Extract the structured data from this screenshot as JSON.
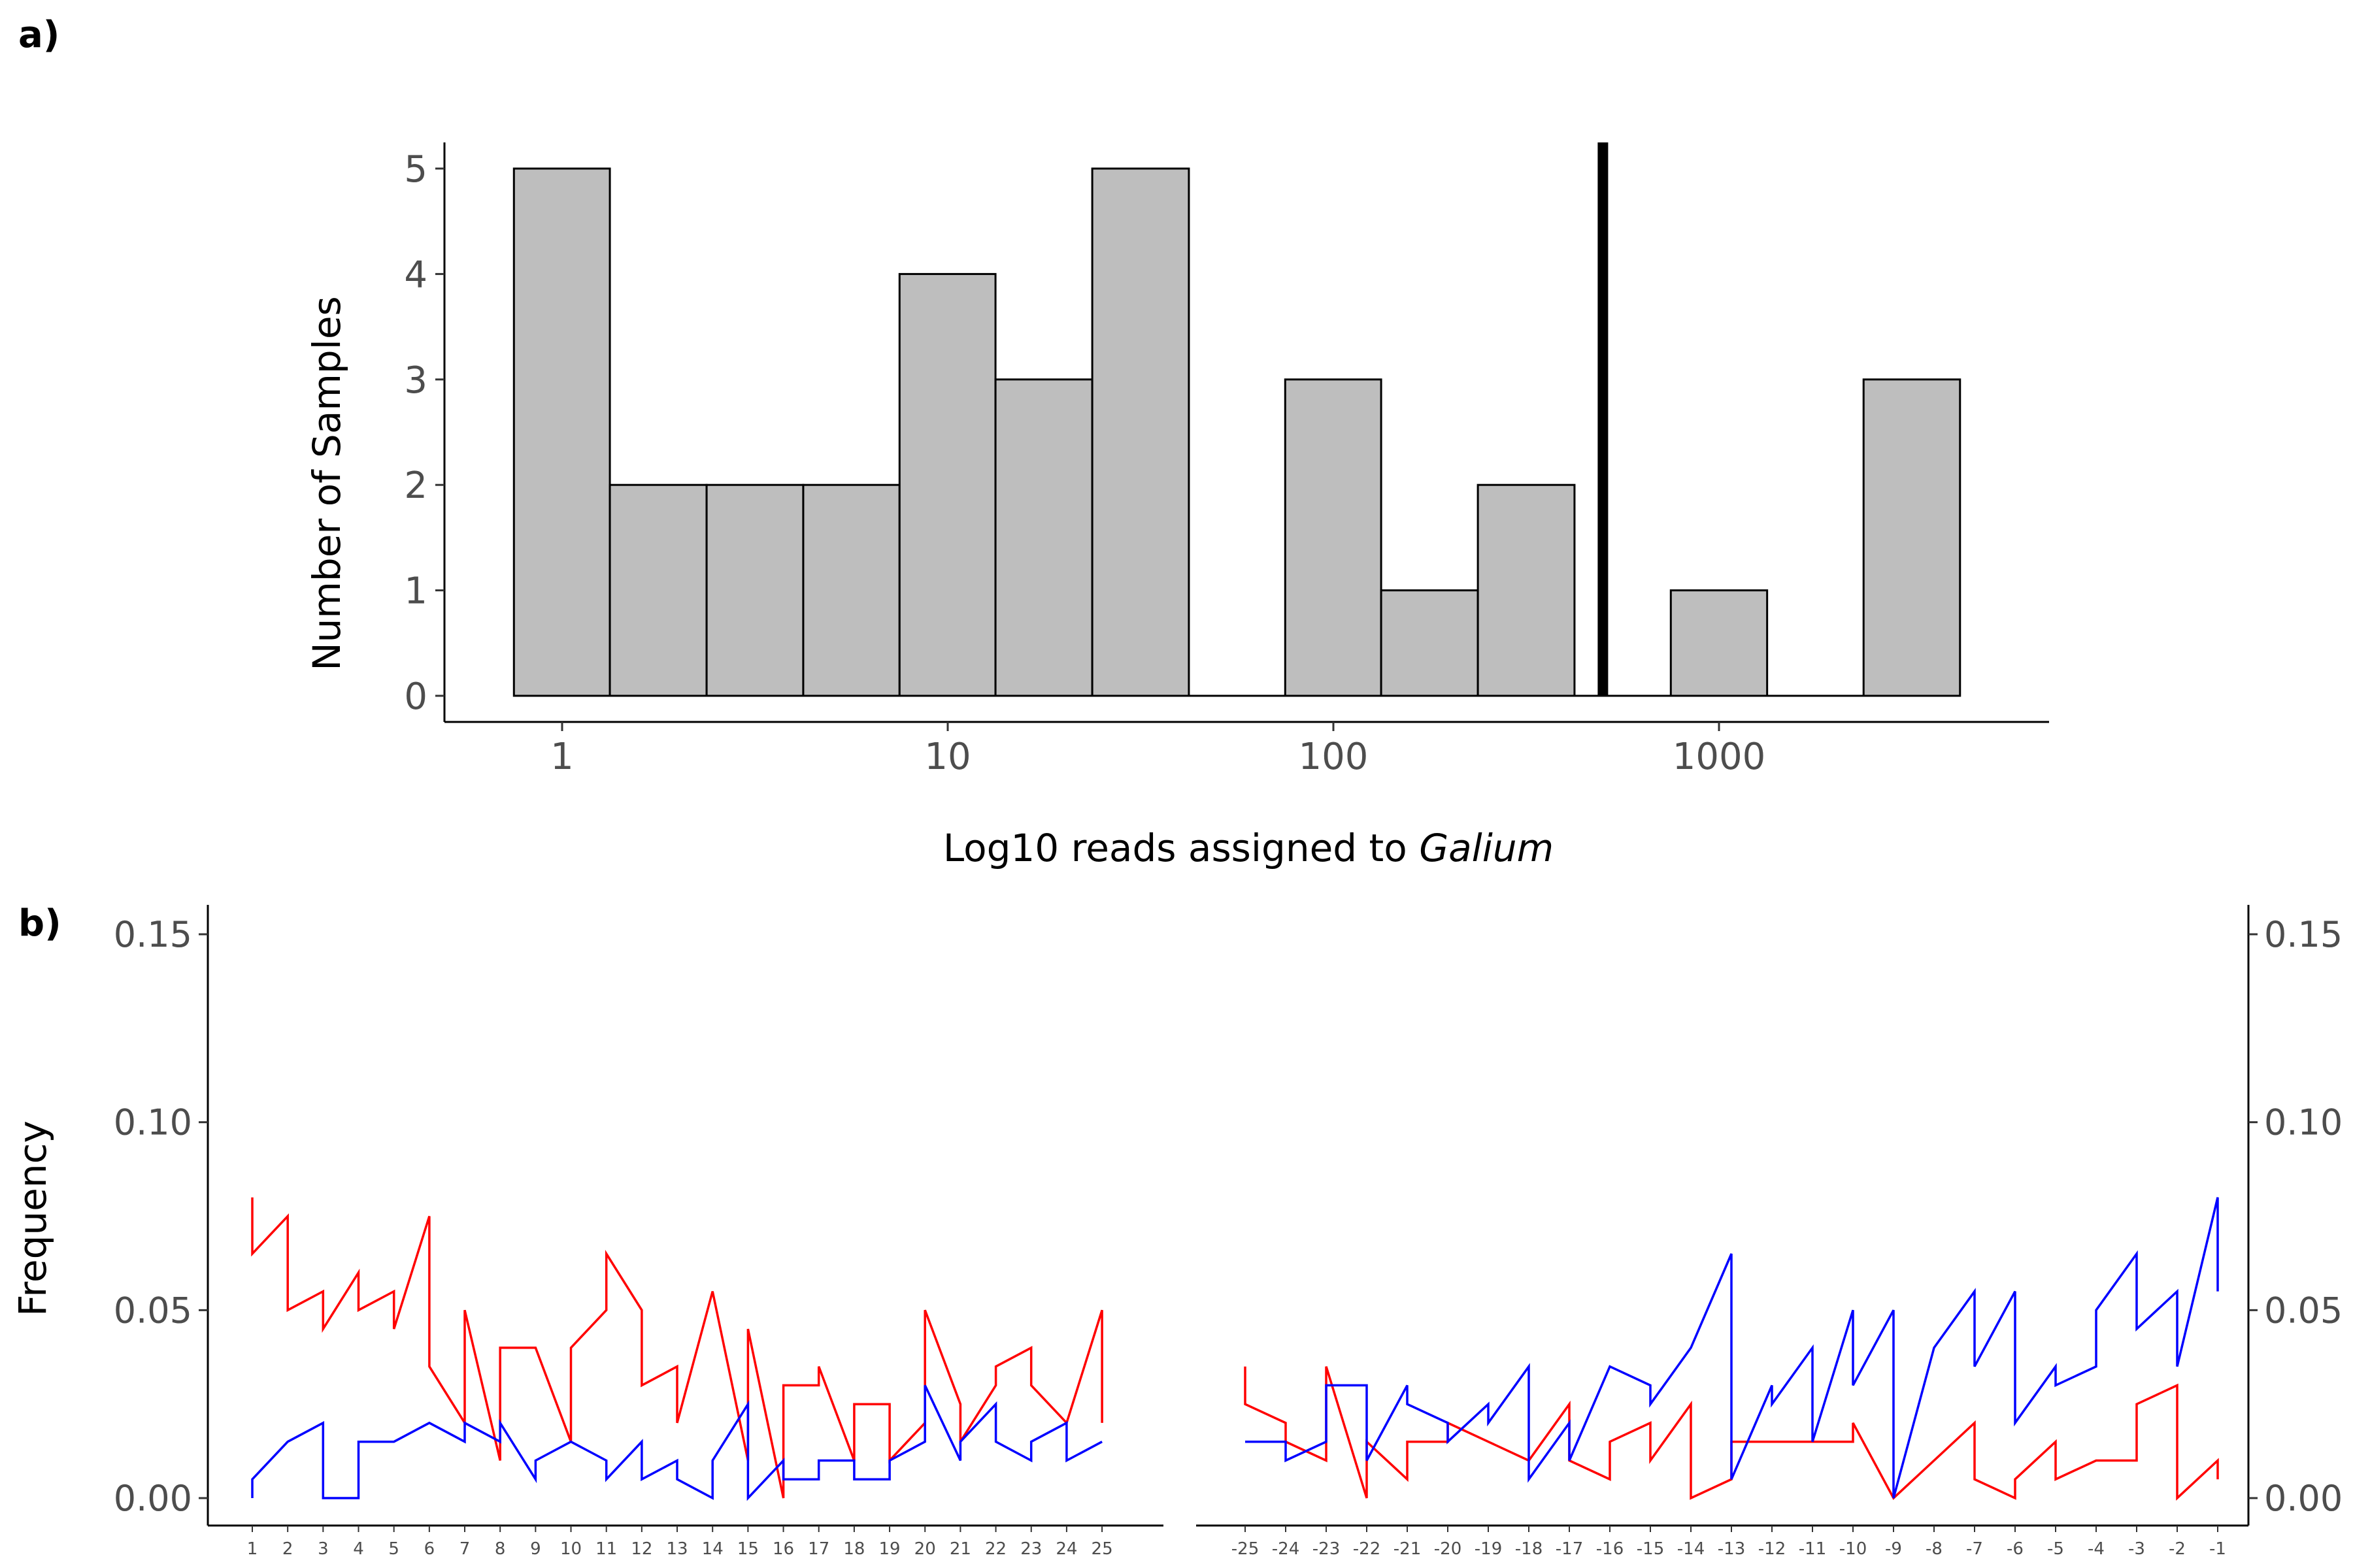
{
  "panels": {
    "a_label": "a)",
    "b_label": "b)"
  },
  "chart_data": [
    {
      "type": "bar",
      "subtype": "histogram",
      "xscale": "log10",
      "xlabel_prefix": "Log10 reads assigned to ",
      "xlabel_italic": "Galium",
      "ylabel": "Number of Samples",
      "xticks": [
        1,
        10,
        100,
        1000
      ],
      "xtick_labels": [
        "1",
        "10",
        "100",
        "1000"
      ],
      "yticks": [
        0,
        1,
        2,
        3,
        4,
        5
      ],
      "ylim": [
        0,
        5.25
      ],
      "bins": [
        {
          "left": 0.75,
          "right": 1.33,
          "count": 5
        },
        {
          "left": 1.33,
          "right": 2.37,
          "count": 2
        },
        {
          "left": 2.37,
          "right": 4.22,
          "count": 2
        },
        {
          "left": 4.22,
          "right": 7.5,
          "count": 2
        },
        {
          "left": 7.5,
          "right": 13.3,
          "count": 4
        },
        {
          "left": 13.3,
          "right": 23.7,
          "count": 3
        },
        {
          "left": 23.7,
          "right": 42.2,
          "count": 5
        },
        {
          "left": 42.2,
          "right": 75,
          "count": 0
        },
        {
          "left": 75,
          "right": 133,
          "count": 3
        },
        {
          "left": 133,
          "right": 237,
          "count": 1
        },
        {
          "left": 237,
          "right": 422,
          "count": 2
        },
        {
          "left": 422,
          "right": 750,
          "count": 0
        },
        {
          "left": 750,
          "right": 1333,
          "count": 1
        },
        {
          "left": 1333,
          "right": 2371,
          "count": 0
        },
        {
          "left": 2371,
          "right": 4217,
          "count": 3
        }
      ],
      "threshold_line": 500,
      "colors": {
        "bar_fill": "#bebebe",
        "bar_stroke": "#000000",
        "threshold": "#000000"
      }
    },
    {
      "type": "line",
      "ylabel": "Frequency",
      "yticks": [
        0.0,
        0.05,
        0.1,
        0.15
      ],
      "ytick_labels": [
        "0.00",
        "0.05",
        "0.10",
        "0.15"
      ],
      "ylim": [
        -0.005,
        0.157
      ],
      "colors": {
        "red": "#ff0000",
        "blue": "#0000ff"
      },
      "left": {
        "x": [
          1,
          2,
          3,
          4,
          5,
          6,
          7,
          8,
          9,
          10,
          11,
          12,
          13,
          14,
          15,
          16,
          17,
          18,
          19,
          20,
          21,
          22,
          23,
          24,
          25
        ],
        "xtick_labels": [
          "1",
          "2",
          "3",
          "4",
          "5",
          "6",
          "7",
          "8",
          "9",
          "10",
          "11",
          "12",
          "13",
          "14",
          "15",
          "16",
          "17",
          "18",
          "19",
          "20",
          "21",
          "22",
          "23",
          "24",
          "25"
        ],
        "series": [
          {
            "color": "red",
            "points": [
              [
                1,
                0.08
              ],
              [
                1,
                0.065
              ],
              [
                2,
                0.075
              ],
              [
                2,
                0.05
              ],
              [
                3,
                0.055
              ],
              [
                3,
                0.045
              ],
              [
                4,
                0.06
              ],
              [
                4,
                0.05
              ],
              [
                5,
                0.055
              ],
              [
                5,
                0.045
              ],
              [
                6,
                0.075
              ],
              [
                6,
                0.035
              ],
              [
                7,
                0.02
              ],
              [
                7,
                0.05
              ],
              [
                8,
                0.01
              ],
              [
                8,
                0.04
              ],
              [
                9,
                0.04
              ],
              [
                10,
                0.015
              ],
              [
                10,
                0.04
              ],
              [
                11,
                0.05
              ],
              [
                11,
                0.065
              ],
              [
                12,
                0.05
              ],
              [
                12,
                0.03
              ],
              [
                13,
                0.035
              ],
              [
                13,
                0.02
              ],
              [
                14,
                0.055
              ],
              [
                15,
                0.01
              ],
              [
                15,
                0.045
              ],
              [
                16,
                0.0
              ],
              [
                16,
                0.03
              ],
              [
                17,
                0.03
              ],
              [
                17,
                0.035
              ],
              [
                18,
                0.01
              ],
              [
                18,
                0.025
              ],
              [
                19,
                0.025
              ],
              [
                19,
                0.01
              ],
              [
                20,
                0.02
              ],
              [
                20,
                0.05
              ],
              [
                21,
                0.025
              ],
              [
                21,
                0.015
              ],
              [
                22,
                0.03
              ],
              [
                22,
                0.035
              ],
              [
                23,
                0.04
              ],
              [
                23,
                0.03
              ],
              [
                24,
                0.02
              ],
              [
                25,
                0.05
              ],
              [
                25,
                0.02
              ]
            ]
          },
          {
            "color": "blue",
            "points": [
              [
                1,
                0.0
              ],
              [
                1,
                0.005
              ],
              [
                2,
                0.015
              ],
              [
                3,
                0.02
              ],
              [
                3,
                0.0
              ],
              [
                4,
                0.0
              ],
              [
                4,
                0.015
              ],
              [
                5,
                0.015
              ],
              [
                6,
                0.02
              ],
              [
                7,
                0.015
              ],
              [
                7,
                0.02
              ],
              [
                8,
                0.015
              ],
              [
                8,
                0.02
              ],
              [
                9,
                0.005
              ],
              [
                9,
                0.01
              ],
              [
                10,
                0.015
              ],
              [
                11,
                0.01
              ],
              [
                11,
                0.005
              ],
              [
                12,
                0.015
              ],
              [
                12,
                0.005
              ],
              [
                13,
                0.01
              ],
              [
                13,
                0.005
              ],
              [
                14,
                0.0
              ],
              [
                14,
                0.01
              ],
              [
                15,
                0.025
              ],
              [
                15,
                0.0
              ],
              [
                16,
                0.01
              ],
              [
                16,
                0.005
              ],
              [
                17,
                0.005
              ],
              [
                17,
                0.01
              ],
              [
                18,
                0.01
              ],
              [
                18,
                0.005
              ],
              [
                19,
                0.005
              ],
              [
                19,
                0.01
              ],
              [
                20,
                0.015
              ],
              [
                20,
                0.03
              ],
              [
                21,
                0.01
              ],
              [
                21,
                0.015
              ],
              [
                22,
                0.025
              ],
              [
                22,
                0.015
              ],
              [
                23,
                0.01
              ],
              [
                23,
                0.015
              ],
              [
                24,
                0.02
              ],
              [
                24,
                0.01
              ],
              [
                25,
                0.015
              ]
            ]
          }
        ]
      },
      "right": {
        "x": [
          -25,
          -24,
          -23,
          -22,
          -21,
          -20,
          -19,
          -18,
          -17,
          -16,
          -15,
          -14,
          -13,
          -12,
          -11,
          -10,
          -9,
          -8,
          -7,
          -6,
          -5,
          -4,
          -3,
          -2,
          -1
        ],
        "xtick_labels": [
          "-25",
          "-24",
          "-23",
          "-22",
          "-21",
          "-20",
          "-19",
          "-18",
          "-17",
          "-16",
          "-15",
          "-14",
          "-13",
          "-12",
          "-11",
          "-10",
          "-9",
          "-8",
          "-7",
          "-6",
          "-5",
          "-4",
          "-3",
          "-2",
          "-1"
        ],
        "series": [
          {
            "color": "red",
            "points": [
              [
                -25,
                0.035
              ],
              [
                -25,
                0.025
              ],
              [
                -24,
                0.02
              ],
              [
                -24,
                0.015
              ],
              [
                -23,
                0.01
              ],
              [
                -23,
                0.035
              ],
              [
                -22,
                0.0
              ],
              [
                -22,
                0.015
              ],
              [
                -21,
                0.005
              ],
              [
                -21,
                0.015
              ],
              [
                -20,
                0.015
              ],
              [
                -20,
                0.02
              ],
              [
                -19,
                0.015
              ],
              [
                -18,
                0.01
              ],
              [
                -17,
                0.025
              ],
              [
                -17,
                0.01
              ],
              [
                -16,
                0.005
              ],
              [
                -16,
                0.015
              ],
              [
                -15,
                0.02
              ],
              [
                -15,
                0.01
              ],
              [
                -14,
                0.025
              ],
              [
                -14,
                0.0
              ],
              [
                -13,
                0.005
              ],
              [
                -13,
                0.015
              ],
              [
                -12,
                0.015
              ],
              [
                -11,
                0.015
              ],
              [
                -10,
                0.015
              ],
              [
                -10,
                0.02
              ],
              [
                -9,
                0.0
              ],
              [
                -8,
                0.01
              ],
              [
                -7,
                0.02
              ],
              [
                -7,
                0.005
              ],
              [
                -6,
                0.0
              ],
              [
                -6,
                0.005
              ],
              [
                -5,
                0.015
              ],
              [
                -5,
                0.005
              ],
              [
                -4,
                0.01
              ],
              [
                -3,
                0.01
              ],
              [
                -3,
                0.025
              ],
              [
                -2,
                0.03
              ],
              [
                -2,
                0.0
              ],
              [
                -1,
                0.01
              ],
              [
                -1,
                0.005
              ]
            ]
          },
          {
            "color": "blue",
            "points": [
              [
                -25,
                0.015
              ],
              [
                -24,
                0.015
              ],
              [
                -24,
                0.01
              ],
              [
                -23,
                0.015
              ],
              [
                -23,
                0.03
              ],
              [
                -22,
                0.03
              ],
              [
                -22,
                0.01
              ],
              [
                -21,
                0.03
              ],
              [
                -21,
                0.025
              ],
              [
                -20,
                0.02
              ],
              [
                -20,
                0.015
              ],
              [
                -19,
                0.025
              ],
              [
                -19,
                0.02
              ],
              [
                -18,
                0.035
              ],
              [
                -18,
                0.005
              ],
              [
                -17,
                0.02
              ],
              [
                -17,
                0.01
              ],
              [
                -16,
                0.035
              ],
              [
                -15,
                0.03
              ],
              [
                -15,
                0.025
              ],
              [
                -14,
                0.04
              ],
              [
                -13,
                0.065
              ],
              [
                -13,
                0.005
              ],
              [
                -12,
                0.03
              ],
              [
                -12,
                0.025
              ],
              [
                -11,
                0.04
              ],
              [
                -11,
                0.015
              ],
              [
                -10,
                0.05
              ],
              [
                -10,
                0.03
              ],
              [
                -9,
                0.05
              ],
              [
                -9,
                0.0
              ],
              [
                -8,
                0.04
              ],
              [
                -7,
                0.055
              ],
              [
                -7,
                0.035
              ],
              [
                -6,
                0.055
              ],
              [
                -6,
                0.02
              ],
              [
                -5,
                0.035
              ],
              [
                -5,
                0.03
              ],
              [
                -4,
                0.035
              ],
              [
                -4,
                0.05
              ],
              [
                -3,
                0.065
              ],
              [
                -3,
                0.045
              ],
              [
                -2,
                0.055
              ],
              [
                -2,
                0.035
              ],
              [
                -1,
                0.08
              ],
              [
                -1,
                0.055
              ]
            ]
          }
        ]
      }
    }
  ]
}
